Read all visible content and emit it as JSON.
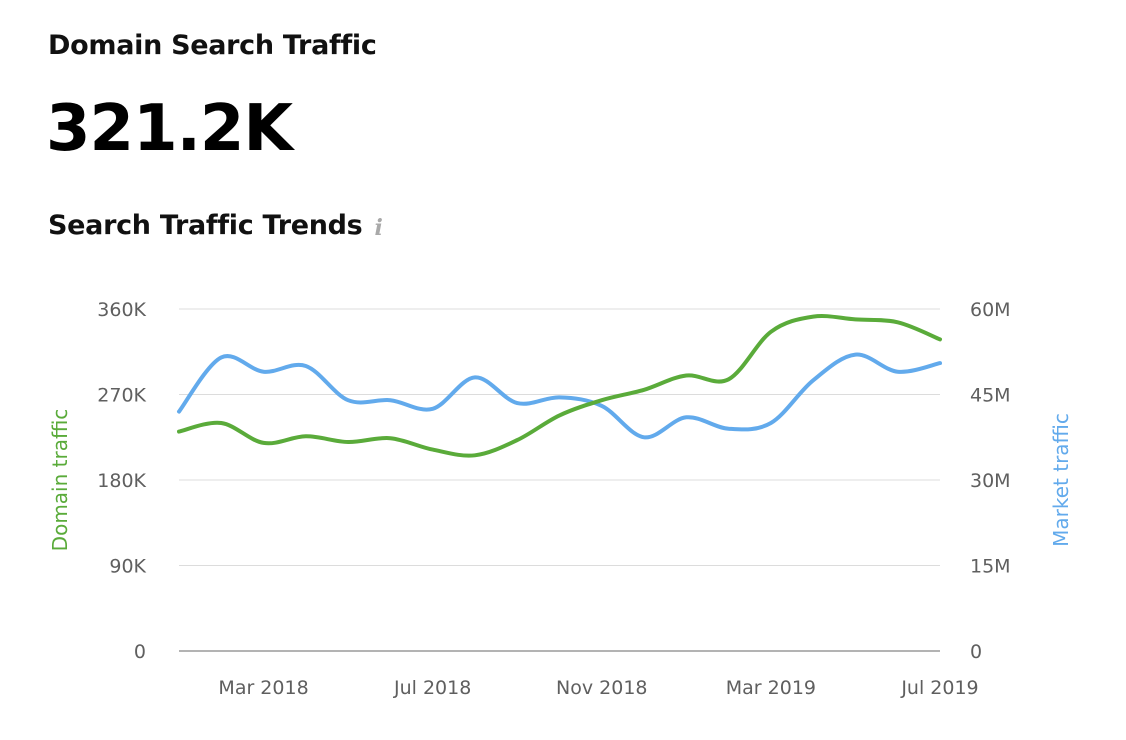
{
  "header": {
    "title": "Domain Search Traffic",
    "metric_value": "321.2K",
    "subtitle": "Search Traffic Trends",
    "info_icon": "info-icon",
    "info_glyph": "i"
  },
  "colors": {
    "domain": "#5aab3a",
    "market": "#62aaec",
    "grid": "#dcdcdc",
    "baseline": "#9a9a9a"
  },
  "chart_data": {
    "type": "line",
    "x": [
      "2018-01",
      "2018-02",
      "2018-03",
      "2018-04",
      "2018-05",
      "2018-06",
      "2018-07",
      "2018-08",
      "2018-09",
      "2018-10",
      "2018-11",
      "2018-12",
      "2019-01",
      "2019-02",
      "2019-03",
      "2019-04",
      "2019-05",
      "2019-06",
      "2019-07"
    ],
    "x_tick_labels": [
      "Mar 2018",
      "Jul 2018",
      "Nov 2018",
      "Mar 2019",
      "Jul 2019"
    ],
    "x_tick_positions": [
      "2018-03",
      "2018-07",
      "2018-11",
      "2019-03",
      "2019-07"
    ],
    "left_axis": {
      "label": "Domain traffic",
      "ylim": [
        0,
        360000
      ],
      "ticks": [
        "0",
        "90K",
        "180K",
        "270K",
        "360K"
      ]
    },
    "right_axis": {
      "label": "Market traffic",
      "ylim": [
        0,
        60000000
      ],
      "ticks": [
        "0",
        "15M",
        "30M",
        "45M",
        "60M"
      ]
    },
    "series": [
      {
        "name": "Domain traffic",
        "axis": "left",
        "values": [
          231000,
          240000,
          219000,
          226000,
          220000,
          224000,
          212000,
          206000,
          222000,
          248000,
          264000,
          275000,
          290000,
          286000,
          336000,
          352000,
          349000,
          346000,
          328000
        ]
      },
      {
        "name": "Market traffic",
        "axis": "right",
        "values": [
          42000000,
          51500000,
          49000000,
          50000000,
          44000000,
          44000000,
          42500000,
          48000000,
          43500000,
          44500000,
          43000000,
          37500000,
          41000000,
          39000000,
          40000000,
          47500000,
          52000000,
          49000000,
          50500000
        ]
      }
    ],
    "grid": true
  }
}
